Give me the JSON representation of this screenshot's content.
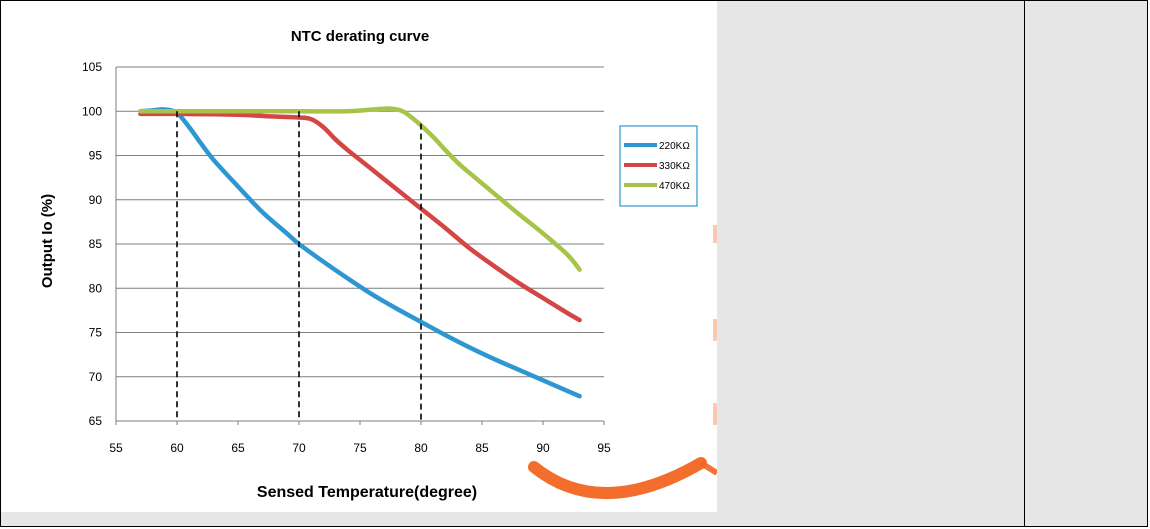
{
  "colors": {
    "series_220": "#2e97d2",
    "series_330": "#d44646",
    "series_470": "#a7c44a",
    "grid": "#7f7f7f",
    "legend_border": "#2e97d2",
    "panel_bg": "#e6e6e6",
    "watermark": "#f26522"
  },
  "chart_data": {
    "type": "line",
    "title": "NTC  derating curve",
    "xlabel": "Sensed Temperature(degree)",
    "ylabel": "Output Io (%)",
    "xlim": [
      55,
      95
    ],
    "ylim": [
      65,
      105
    ],
    "x_ticks": [
      "55",
      "60",
      "65",
      "70",
      "75",
      "80",
      "85",
      "90",
      "95"
    ],
    "y_ticks": [
      "65",
      "70",
      "75",
      "80",
      "85",
      "90",
      "95",
      "100",
      "105"
    ],
    "y_tick_values": [
      65,
      70,
      75,
      80,
      85,
      90,
      95,
      100,
      105
    ],
    "x_tick_values": [
      55,
      60,
      65,
      70,
      75,
      80,
      85,
      90,
      95
    ],
    "grid": "horizontal",
    "legend_position": "right",
    "reference_lines_x": [
      60,
      70,
      80
    ],
    "series": [
      {
        "name": "220KΩ",
        "color_key": "series_220",
        "points": [
          [
            57,
            100
          ],
          [
            58,
            100.1
          ],
          [
            59,
            100.2
          ],
          [
            60,
            99.8
          ],
          [
            61,
            98.2
          ],
          [
            62,
            96.3
          ],
          [
            63,
            94.5
          ],
          [
            65,
            91.5
          ],
          [
            67,
            88.6
          ],
          [
            69,
            86.2
          ],
          [
            70,
            85
          ],
          [
            72,
            83
          ],
          [
            74,
            81.1
          ],
          [
            76,
            79.3
          ],
          [
            78,
            77.7
          ],
          [
            80,
            76.2
          ],
          [
            82,
            74.7
          ],
          [
            84,
            73.3
          ],
          [
            86,
            72
          ],
          [
            88,
            70.8
          ],
          [
            90,
            69.6
          ],
          [
            92,
            68.4
          ],
          [
            93,
            67.8
          ]
        ]
      },
      {
        "name": "330KΩ",
        "color_key": "series_330",
        "points": [
          [
            57,
            99.7
          ],
          [
            60,
            99.7
          ],
          [
            65,
            99.6
          ],
          [
            68,
            99.4
          ],
          [
            70,
            99.3
          ],
          [
            71,
            99.1
          ],
          [
            72,
            98.2
          ],
          [
            73,
            96.8
          ],
          [
            74,
            95.6
          ],
          [
            75,
            94.5
          ],
          [
            77,
            92.3
          ],
          [
            79,
            90.1
          ],
          [
            80,
            89
          ],
          [
            82,
            86.8
          ],
          [
            84,
            84.5
          ],
          [
            86,
            82.5
          ],
          [
            88,
            80.6
          ],
          [
            90,
            78.9
          ],
          [
            92,
            77.2
          ],
          [
            93,
            76.4
          ]
        ]
      },
      {
        "name": "470KΩ",
        "color_key": "series_470",
        "points": [
          [
            57,
            100
          ],
          [
            60,
            100
          ],
          [
            65,
            100
          ],
          [
            70,
            100
          ],
          [
            74,
            100
          ],
          [
            76,
            100.2
          ],
          [
            77.5,
            100.3
          ],
          [
            78.5,
            100
          ],
          [
            79.5,
            99
          ],
          [
            80,
            98.4
          ],
          [
            81,
            97.1
          ],
          [
            82,
            95.6
          ],
          [
            83,
            94.2
          ],
          [
            84,
            93
          ],
          [
            86,
            90.7
          ],
          [
            88,
            88.4
          ],
          [
            90,
            86.2
          ],
          [
            92,
            83.8
          ],
          [
            93,
            82.1
          ]
        ]
      }
    ]
  }
}
